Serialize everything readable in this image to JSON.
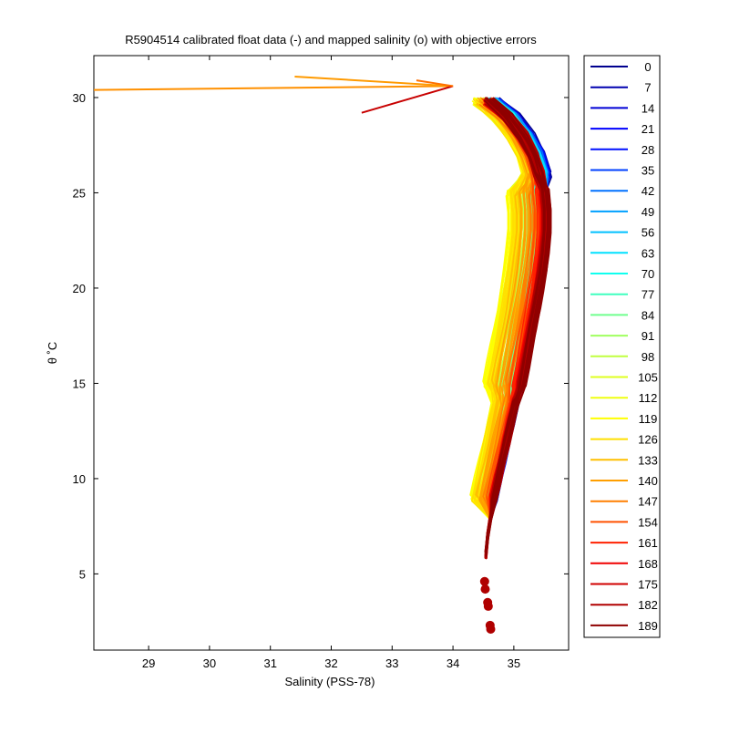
{
  "chart_data": {
    "type": "line",
    "title": "R5904514 calibrated float data (-) and mapped salinity (o) with objective errors",
    "xlabel": "Salinity (PSS-78)",
    "ylabel": "θ ˚C",
    "xlim": [
      28.1,
      35.9
    ],
    "ylim": [
      1.0,
      32.2
    ],
    "xticks": [
      29,
      30,
      31,
      32,
      33,
      34,
      35
    ],
    "yticks": [
      5,
      10,
      15,
      20,
      25,
      30
    ],
    "grid": false,
    "legend_position": "outside-right",
    "legend": [
      "0",
      "7",
      "14",
      "21",
      "28",
      "35",
      "42",
      "49",
      "56",
      "63",
      "70",
      "77",
      "84",
      "91",
      "98",
      "105",
      "112",
      "119",
      "126",
      "133",
      "140",
      "147",
      "154",
      "161",
      "168",
      "175",
      "182",
      "189"
    ],
    "legend_colors": [
      "#00008f",
      "#0000b0",
      "#0000d5",
      "#0000ff",
      "#0010ff",
      "#0040ff",
      "#0070ff",
      "#00a0ff",
      "#00c0ff",
      "#00e0ff",
      "#10ffef",
      "#40ffbf",
      "#70ff8f",
      "#a0ff60",
      "#c0ff40",
      "#dfff20",
      "#efff10",
      "#ffff00",
      "#ffdf00",
      "#ffbf00",
      "#ff9f00",
      "#ff7f00",
      "#ff5000",
      "#ff2000",
      "#f00000",
      "#d00000",
      "#b00000",
      "#8f0000"
    ],
    "profile_shape": {
      "theta": [
        29.8,
        29.0,
        28.0,
        27.0,
        26.0,
        25.0,
        24.0,
        23.0,
        22.0,
        21.0,
        20.0,
        19.0,
        18.0,
        17.0,
        16.0,
        15.0,
        14.0,
        13.0,
        12.0,
        11.0,
        10.0,
        9.0,
        8.0,
        7.0,
        6.0
      ],
      "salinity": [
        34.6,
        34.9,
        35.15,
        35.32,
        35.42,
        35.48,
        35.51,
        35.51,
        35.48,
        35.44,
        35.39,
        35.34,
        35.28,
        35.22,
        35.16,
        35.1,
        35.03,
        34.96,
        34.89,
        34.82,
        34.75,
        34.68,
        34.62,
        34.57,
        34.54
      ]
    },
    "surface_outliers": [
      {
        "salinity": 28.1,
        "theta": 30.4,
        "color": "#ff9000"
      },
      {
        "salinity": 31.4,
        "theta": 31.1,
        "color": "#ff9a00"
      },
      {
        "salinity": 32.5,
        "theta": 29.2,
        "color": "#c80000"
      },
      {
        "salinity": 33.4,
        "theta": 30.9,
        "color": "#ff7000"
      }
    ],
    "mapped_salinity_points": [
      {
        "salinity": 34.52,
        "theta": 4.6
      },
      {
        "salinity": 34.53,
        "theta": 4.2
      },
      {
        "salinity": 34.57,
        "theta": 3.5
      },
      {
        "salinity": 34.58,
        "theta": 3.3
      },
      {
        "salinity": 34.61,
        "theta": 2.3
      },
      {
        "salinity": 34.62,
        "theta": 2.1
      }
    ],
    "mapped_point_color": "#b00000"
  }
}
